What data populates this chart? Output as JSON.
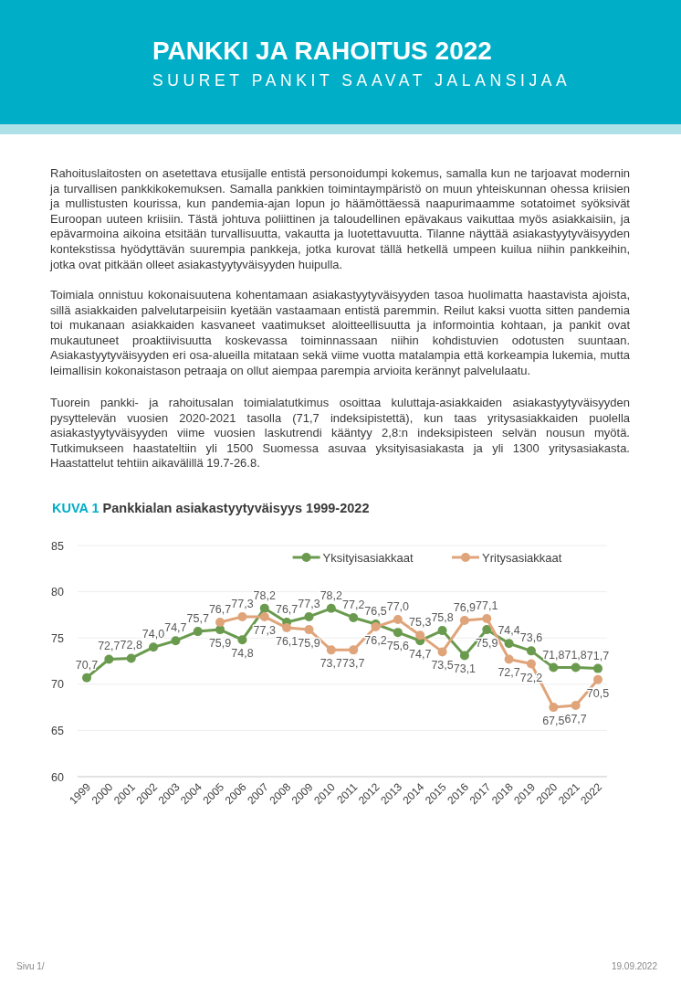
{
  "chart_data": {
    "type": "line",
    "title": "KUVA 1 Pankkialan asiakastyytyväisyys 1999-2022",
    "annotations": [
      "PANKKI JA RAHOITUS 2022",
      "SUURET PANKIT SAAVAT JALANSIJAA",
      "Rahoituslaitosten on asetettava etusijalle entistä personoidumpi kokemus, samalla kun ne tarjoavat modernin ja turvallisen pankkikokemuksen. Samalla pankkien toimintaympäristö on muun yhteiskunnan ohessa kriisien ja mullistusten kourissa, kun pandemia-ajan lopun jo häämöttäessä naapurimaamme sotatoimet syöksivät Euroopan uuteen kriisiin. Tästä johtuva poliittinen ja taloudellinen epävakaus vaikuttaa myös asiakkaisiin, ja epävarmoina aikoina etsitään turvallisuutta, vakautta ja luotettavuutta. Tilanne näyttää asiakastyytyväisyyden kontekstissa hyödyttävän suurempia pankkeja, jotka kurovat tällä hetkellä umpeen kuilua niihin pankkeihin, jotka ovat pitkään olleet asiakastyytyväisyyden huipulla.",
      "Toimiala onnistuu kokonaisuutena kohentamaan asiakastyytyväisyyden tasoa huolimatta haastavista ajoista, sillä asiakkaiden palvelutarpeisiin kyetään vastaamaan entistä paremmin. Reilut kaksi vuotta sitten pandemia toi mukanaan asiakkaiden kasvaneet vaatimukset aloitteellisuutta ja informointia kohtaan, ja pankit ovat mukautuneet proaktiivisuutta koskevassa toiminnassaan niihin kohdistuvien odotusten suuntaan. Asiakastyytyväisyyden eri osa-alueilla mitataan sekä viime vuotta matalampia että korkeampia lukemia, mutta leimallisin kokonaistason petraaja on ollut aiempaa parempia arvioita kerännyt palvelulaatu.",
      "Tuorein pankki- ja rahoitusalan toimialatutkimus osoittaa kuluttaja-asiakkaiden asiakastyytyväisyyden pysyttelevän vuosien 2020-2021 tasolla (71,7 indeksipistettä), kun taas yritysasiakkaiden puolella asiakastyytyväisyyden viime vuosien laskutrendi kääntyy 2,8:n indeksipisteen selvän nousun myötä. Tutkimukseen haastateltiin yli 1500 Suomessa asuvaa yksityisasiakasta ja yli 1300 yritysasiakasta. Haastattelut tehtiin aikavälillä 19.7-26.8.",
      "Sivu 1/",
      "19.09.2022"
    ],
    "categories": [
      "1999",
      "2000",
      "2001",
      "2002",
      "2003",
      "2004",
      "2005",
      "2006",
      "2007",
      "2008",
      "2009",
      "2010",
      "2011",
      "2012",
      "2013",
      "2014",
      "2015",
      "2016",
      "2017",
      "2018",
      "2019",
      "2020",
      "2021",
      "2022"
    ],
    "series": [
      {
        "name": "Yksityisasiakkaat",
        "color": "#6a9a4e",
        "values": [
          70.7,
          72.7,
          72.8,
          74.0,
          74.7,
          75.7,
          75.9,
          74.8,
          78.2,
          76.7,
          77.3,
          78.2,
          77.2,
          76.5,
          75.6,
          74.7,
          75.8,
          73.1,
          75.9,
          74.4,
          73.6,
          71.8,
          71.8,
          71.7
        ],
        "value_labels": [
          "70,7",
          "72,7",
          "72,8",
          "74,0",
          "74,7",
          "75,7",
          "75,9",
          "74,8",
          "78,2",
          "76,7",
          "77,3",
          "78,2",
          "77,2",
          "76,5",
          "75,6",
          "74,7",
          "75,8",
          "73,1",
          "75,9",
          "74,4",
          "73,6",
          "71,8",
          "71,8",
          "71,7"
        ]
      },
      {
        "name": "Yritysasiakkaat",
        "color": "#e0a47a",
        "values": [
          null,
          null,
          null,
          null,
          null,
          null,
          76.7,
          77.3,
          77.3,
          76.1,
          75.9,
          73.7,
          73.7,
          76.2,
          77.0,
          75.3,
          73.5,
          76.9,
          77.1,
          72.7,
          72.2,
          67.5,
          67.7,
          70.5
        ],
        "value_labels": [
          null,
          null,
          null,
          null,
          null,
          null,
          "76,7",
          "77,3",
          "77,3",
          "76,1",
          "75,9",
          "73,7",
          "73,7",
          "76,2",
          "77,0",
          "75,3",
          "73,5",
          "76,9",
          "77,1",
          "72,7",
          "72,2",
          "67,5",
          "67,7",
          "70,5"
        ]
      }
    ],
    "ylim": [
      60,
      85
    ],
    "yticks": [
      60,
      65,
      70,
      75,
      80,
      85
    ],
    "grid": "y",
    "legend": "top right",
    "marker": "circle",
    "line_style": "solid"
  }
}
